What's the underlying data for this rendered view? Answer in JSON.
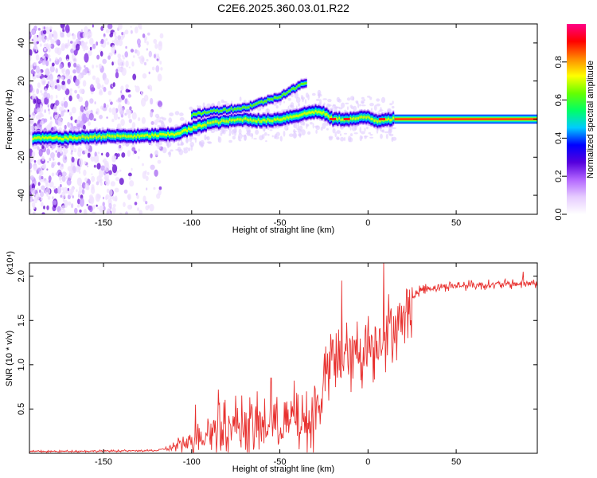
{
  "chart_data": [
    {
      "type": "heatmap",
      "title": "C2E6.2025.360.03.01.R22",
      "xlabel": "Height of straight line (km)",
      "ylabel": "Frequency (Hz)",
      "xlim": [
        -192,
        96
      ],
      "ylim": [
        -50,
        50
      ],
      "xticks": [
        -150,
        -100,
        -50,
        0,
        50
      ],
      "yticks": [
        -40,
        -20,
        0,
        20,
        40
      ],
      "colorbar": {
        "label": "Normalized spectral amplitude",
        "range": [
          0,
          1
        ],
        "ticks": [
          "0.0",
          "0.2",
          "0.4",
          "0.6",
          "0.8"
        ],
        "stops": [
          "#ffffff",
          "#e6ccff",
          "#b366ff",
          "#5500dd",
          "#0000ff",
          "#00ccff",
          "#00ff66",
          "#66ff00",
          "#ffff00",
          "#ff8800",
          "#ff0000",
          "#ff0088"
        ]
      },
      "trace": [
        {
          "x": -190,
          "f": -10
        },
        {
          "x": -170,
          "f": -10
        },
        {
          "x": -150,
          "f": -9
        },
        {
          "x": -130,
          "f": -9
        },
        {
          "x": -110,
          "f": -8
        },
        {
          "x": -100,
          "f": -5
        },
        {
          "x": -90,
          "f": -2
        },
        {
          "x": -80,
          "f": -1
        },
        {
          "x": -70,
          "f": 0
        },
        {
          "x": -60,
          "f": -1
        },
        {
          "x": -50,
          "f": 0
        },
        {
          "x": -40,
          "f": 2
        },
        {
          "x": -30,
          "f": 4
        },
        {
          "x": -25,
          "f": 3
        },
        {
          "x": -20,
          "f": 0
        },
        {
          "x": -10,
          "f": 0
        },
        {
          "x": 0,
          "f": 1
        },
        {
          "x": 5,
          "f": -1
        },
        {
          "x": 10,
          "f": 0
        },
        {
          "x": 15,
          "f": 0
        },
        {
          "x": 96,
          "f": 0
        }
      ],
      "upper_branch": [
        {
          "x": -100,
          "f": 2
        },
        {
          "x": -90,
          "f": 4
        },
        {
          "x": -80,
          "f": 5
        },
        {
          "x": -70,
          "f": 6
        },
        {
          "x": -60,
          "f": 9
        },
        {
          "x": -50,
          "f": 12
        },
        {
          "x": -40,
          "f": 17
        },
        {
          "x": -30,
          "f": 22
        }
      ]
    },
    {
      "type": "line",
      "xlabel": "Height of straight line (km)",
      "ylabel": "SNR (10 * v/v)",
      "scale_label": "(x10⁴)",
      "xlim": [
        -192,
        96
      ],
      "ylim": [
        0,
        2.15
      ],
      "xticks": [
        -150,
        -100,
        -50,
        0,
        50
      ],
      "yticks": [
        0.5,
        1.0,
        1.5,
        2.0
      ],
      "color": "#e8312f",
      "envelope": [
        {
          "x": -192,
          "y": 0.02
        },
        {
          "x": -120,
          "y": 0.03
        },
        {
          "x": -110,
          "y": 0.07
        },
        {
          "x": -100,
          "y": 0.15
        },
        {
          "x": -90,
          "y": 0.25
        },
        {
          "x": -80,
          "y": 0.3
        },
        {
          "x": -70,
          "y": 0.32
        },
        {
          "x": -60,
          "y": 0.3
        },
        {
          "x": -50,
          "y": 0.32
        },
        {
          "x": -40,
          "y": 0.33
        },
        {
          "x": -32,
          "y": 0.35
        },
        {
          "x": -28,
          "y": 0.55
        },
        {
          "x": -24,
          "y": 0.9
        },
        {
          "x": -15,
          "y": 1.05
        },
        {
          "x": -5,
          "y": 1.15
        },
        {
          "x": 5,
          "y": 1.25
        },
        {
          "x": 12,
          "y": 1.4
        },
        {
          "x": 20,
          "y": 1.55
        },
        {
          "x": 25,
          "y": 1.75
        },
        {
          "x": 30,
          "y": 1.85
        },
        {
          "x": 40,
          "y": 1.88
        },
        {
          "x": 60,
          "y": 1.9
        },
        {
          "x": 80,
          "y": 1.91
        },
        {
          "x": 96,
          "y": 1.92
        }
      ],
      "spikes": [
        {
          "x": -98,
          "y": 0.55
        },
        {
          "x": -85,
          "y": 0.72
        },
        {
          "x": -75,
          "y": 0.65
        },
        {
          "x": -63,
          "y": 0.7
        },
        {
          "x": -55,
          "y": 0.85
        },
        {
          "x": -42,
          "y": 0.82
        },
        {
          "x": -35,
          "y": 0.7
        },
        {
          "x": -20,
          "y": 1.28
        },
        {
          "x": -15,
          "y": 1.95
        },
        {
          "x": 0,
          "y": 1.55
        },
        {
          "x": 9,
          "y": 2.15
        },
        {
          "x": 20,
          "y": 1.6
        },
        {
          "x": 88,
          "y": 2.05
        }
      ]
    }
  ]
}
